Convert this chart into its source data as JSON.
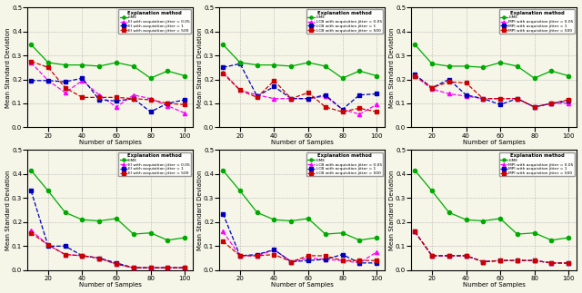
{
  "x": [
    10,
    20,
    30,
    40,
    50,
    60,
    70,
    80,
    90,
    100
  ],
  "row1_legends": [
    [
      "LIME",
      "EI with acquisition jitter = 0.05",
      "EI with acquisition jitter = 1",
      "EI with acquisition jitter = 500"
    ],
    [
      "LIME",
      "LCB with acquisition jitter = 0.05",
      "LCB with acquisition jitter = 1",
      "LCB with acquisition jitter = 500"
    ],
    [
      "LIME",
      "MPI with acquisition jitter = 0.05",
      "MPI with acquisition jitter = 1",
      "MPI with acquisition jitter = 500"
    ]
  ],
  "row2_legends": [
    [
      "LIME",
      "EI with acquisition jitter = 0.05",
      "EI with acquisition jitter = 1",
      "EI with acquisition jitter = 500"
    ],
    [
      "LIME",
      "LCB with acquisition jitter = 0.05",
      "LCB with acquisition jitter = 1",
      "LCB with acquisition jitter = 500"
    ],
    [
      "LIME",
      "MPI with acquisition jitter = 0.05",
      "MPI with acquisition jitter = 1",
      "MPI with acquisition jitter = 500"
    ]
  ],
  "ylabel": "Mean Standard Deviation",
  "xlabel": "Number of Samples",
  "colors": {
    "lime": "#00aa00",
    "jitter1": "#ff00ff",
    "jitter2": "#0000bb",
    "jitter3": "#cc0000"
  },
  "bg": "#f5f5e8",
  "row1": {
    "a_lime": [
      0.345,
      0.27,
      0.26,
      0.26,
      0.255,
      0.27,
      0.255,
      0.205,
      0.235,
      0.215
    ],
    "a_j005": [
      0.27,
      0.195,
      0.145,
      0.195,
      0.135,
      0.085,
      0.135,
      0.12,
      0.09,
      0.06
    ],
    "a_j1": [
      0.195,
      0.195,
      0.19,
      0.205,
      0.115,
      0.11,
      0.12,
      0.065,
      0.1,
      0.115
    ],
    "a_j500": [
      0.275,
      0.25,
      0.165,
      0.125,
      0.125,
      0.125,
      0.12,
      0.115,
      0.1,
      0.095
    ],
    "b_lime": [
      0.345,
      0.27,
      0.26,
      0.26,
      0.255,
      0.27,
      0.255,
      0.205,
      0.235,
      0.215
    ],
    "b_j005": [
      0.23,
      0.155,
      0.135,
      0.12,
      0.12,
      0.12,
      0.13,
      0.075,
      0.055,
      0.095
    ],
    "b_j1": [
      0.25,
      0.265,
      0.13,
      0.17,
      0.12,
      0.12,
      0.135,
      0.075,
      0.135,
      0.14
    ],
    "b_j500": [
      0.225,
      0.155,
      0.125,
      0.195,
      0.12,
      0.145,
      0.085,
      0.065,
      0.08,
      0.065
    ],
    "c_lime": [
      0.345,
      0.265,
      0.255,
      0.255,
      0.25,
      0.27,
      0.255,
      0.205,
      0.235,
      0.215
    ],
    "c_j005": [
      0.215,
      0.16,
      0.14,
      0.13,
      0.12,
      0.12,
      0.12,
      0.085,
      0.1,
      0.1
    ],
    "c_j1": [
      0.22,
      0.165,
      0.2,
      0.135,
      0.12,
      0.095,
      0.12,
      0.085,
      0.1,
      0.11
    ],
    "c_j500": [
      0.215,
      0.165,
      0.19,
      0.185,
      0.12,
      0.12,
      0.12,
      0.085,
      0.1,
      0.115
    ]
  },
  "row2": {
    "d_lime": [
      0.415,
      0.33,
      0.24,
      0.21,
      0.205,
      0.215,
      0.15,
      0.155,
      0.125,
      0.135
    ],
    "d_j005": [
      0.165,
      0.105,
      0.065,
      0.06,
      0.05,
      0.025,
      0.01,
      0.01,
      0.01,
      0.01
    ],
    "d_j1": [
      0.33,
      0.1,
      0.1,
      0.06,
      0.05,
      0.03,
      0.01,
      0.01,
      0.01,
      0.01
    ],
    "d_j500": [
      0.155,
      0.105,
      0.065,
      0.06,
      0.05,
      0.025,
      0.01,
      0.01,
      0.01,
      0.01
    ],
    "e_lime": [
      0.415,
      0.33,
      0.24,
      0.21,
      0.205,
      0.215,
      0.15,
      0.155,
      0.125,
      0.135
    ],
    "e_j005": [
      0.16,
      0.06,
      0.06,
      0.085,
      0.035,
      0.05,
      0.045,
      0.04,
      0.03,
      0.075
    ],
    "e_j1": [
      0.235,
      0.06,
      0.065,
      0.085,
      0.035,
      0.04,
      0.045,
      0.065,
      0.03,
      0.03
    ],
    "e_j500": [
      0.12,
      0.06,
      0.06,
      0.065,
      0.035,
      0.06,
      0.06,
      0.04,
      0.04,
      0.04
    ],
    "f_lime": [
      0.415,
      0.33,
      0.24,
      0.21,
      0.205,
      0.215,
      0.15,
      0.155,
      0.125,
      0.135
    ],
    "f_j005": [
      0.16,
      0.06,
      0.06,
      0.06,
      0.035,
      0.04,
      0.04,
      0.04,
      0.03,
      0.03
    ],
    "f_j1": [
      0.16,
      0.06,
      0.06,
      0.06,
      0.035,
      0.04,
      0.04,
      0.04,
      0.03,
      0.03
    ],
    "f_j500": [
      0.16,
      0.06,
      0.06,
      0.06,
      0.035,
      0.04,
      0.04,
      0.04,
      0.03,
      0.03
    ]
  }
}
